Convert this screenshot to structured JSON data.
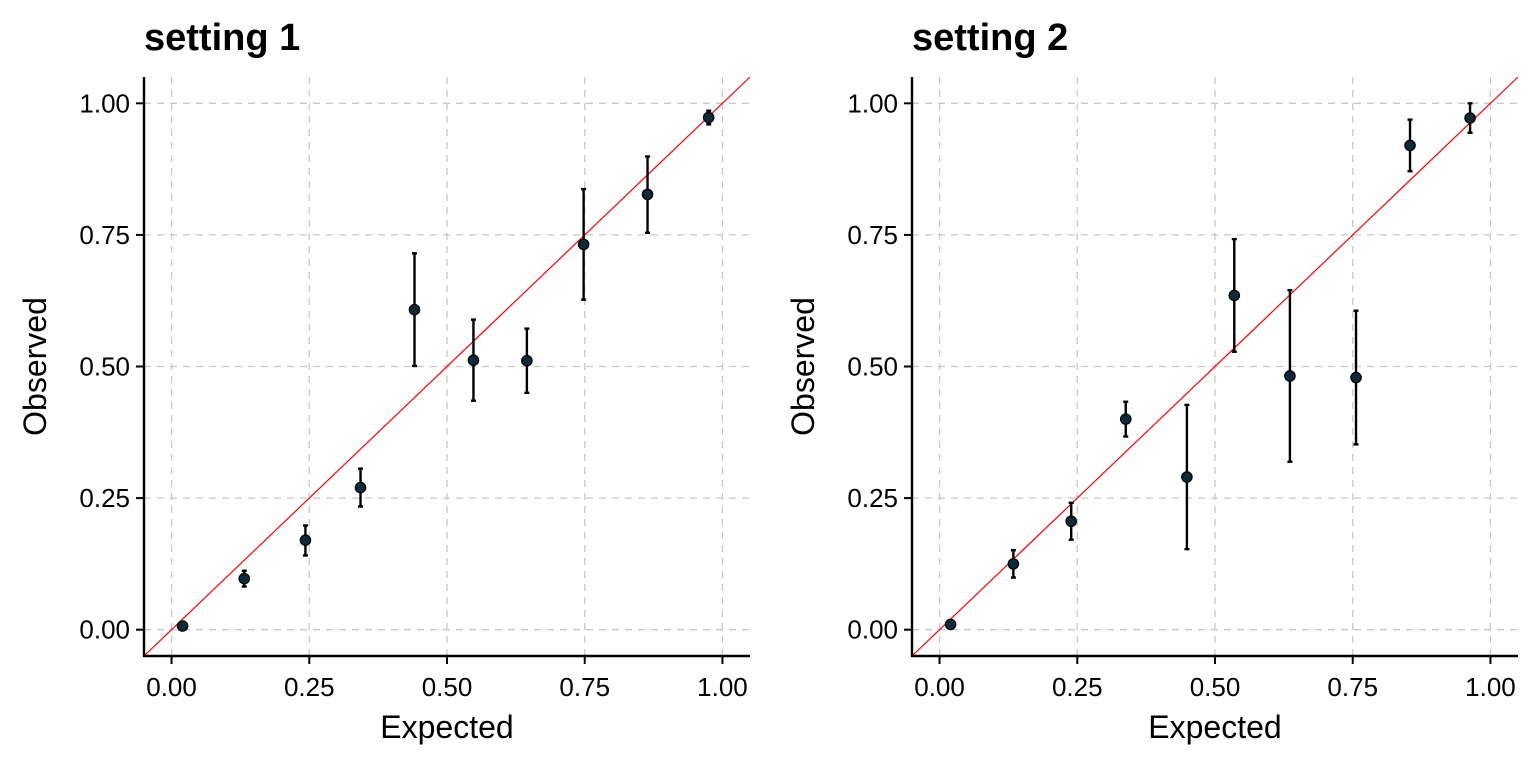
{
  "chart_data": [
    {
      "type": "scatter",
      "title": "setting 1",
      "xlabel": "Expected",
      "ylabel": "Observed",
      "xlim": [
        -0.05,
        1.05
      ],
      "ylim": [
        -0.05,
        1.05
      ],
      "xticks": [
        0.0,
        0.25,
        0.5,
        0.75,
        1.0
      ],
      "yticks": [
        0.0,
        0.25,
        0.5,
        0.75,
        1.0
      ],
      "xtick_labels": [
        "0.00",
        "0.25",
        "0.50",
        "0.75",
        "1.00"
      ],
      "ytick_labels": [
        "0.00",
        "0.25",
        "0.50",
        "0.75",
        "1.00"
      ],
      "grid": true,
      "reference_line": "y = x",
      "reference_color": "#ff0000",
      "point_color": "#0b2a3a",
      "points": [
        {
          "x": 0.02,
          "y": 0.007,
          "lo": 0.004,
          "hi": 0.01
        },
        {
          "x": 0.132,
          "y": 0.097,
          "lo": 0.082,
          "hi": 0.112
        },
        {
          "x": 0.243,
          "y": 0.17,
          "lo": 0.141,
          "hi": 0.198
        },
        {
          "x": 0.343,
          "y": 0.27,
          "lo": 0.234,
          "hi": 0.306
        },
        {
          "x": 0.441,
          "y": 0.608,
          "lo": 0.501,
          "hi": 0.715
        },
        {
          "x": 0.548,
          "y": 0.512,
          "lo": 0.435,
          "hi": 0.589
        },
        {
          "x": 0.645,
          "y": 0.511,
          "lo": 0.45,
          "hi": 0.572
        },
        {
          "x": 0.748,
          "y": 0.732,
          "lo": 0.627,
          "hi": 0.837
        },
        {
          "x": 0.864,
          "y": 0.827,
          "lo": 0.754,
          "hi": 0.899
        },
        {
          "x": 0.975,
          "y": 0.973,
          "lo": 0.96,
          "hi": 0.986
        }
      ]
    },
    {
      "type": "scatter",
      "title": "setting 2",
      "xlabel": "Expected",
      "ylabel": "Observed",
      "xlim": [
        -0.05,
        1.05
      ],
      "ylim": [
        -0.05,
        1.05
      ],
      "xticks": [
        0.0,
        0.25,
        0.5,
        0.75,
        1.0
      ],
      "yticks": [
        0.0,
        0.25,
        0.5,
        0.75,
        1.0
      ],
      "xtick_labels": [
        "0.00",
        "0.25",
        "0.50",
        "0.75",
        "1.00"
      ],
      "ytick_labels": [
        "0.00",
        "0.25",
        "0.50",
        "0.75",
        "1.00"
      ],
      "grid": true,
      "reference_line": "y = x",
      "reference_color": "#ff0000",
      "point_color": "#0b2a3a",
      "points": [
        {
          "x": 0.02,
          "y": 0.01,
          "lo": 0.006,
          "hi": 0.014
        },
        {
          "x": 0.134,
          "y": 0.125,
          "lo": 0.099,
          "hi": 0.151
        },
        {
          "x": 0.239,
          "y": 0.206,
          "lo": 0.171,
          "hi": 0.241
        },
        {
          "x": 0.338,
          "y": 0.4,
          "lo": 0.367,
          "hi": 0.433
        },
        {
          "x": 0.449,
          "y": 0.29,
          "lo": 0.153,
          "hi": 0.427
        },
        {
          "x": 0.535,
          "y": 0.635,
          "lo": 0.528,
          "hi": 0.742
        },
        {
          "x": 0.636,
          "y": 0.482,
          "lo": 0.319,
          "hi": 0.645
        },
        {
          "x": 0.756,
          "y": 0.479,
          "lo": 0.352,
          "hi": 0.606
        },
        {
          "x": 0.854,
          "y": 0.92,
          "lo": 0.871,
          "hi": 0.969
        },
        {
          "x": 0.963,
          "y": 0.972,
          "lo": 0.944,
          "hi": 1.0
        }
      ]
    }
  ]
}
